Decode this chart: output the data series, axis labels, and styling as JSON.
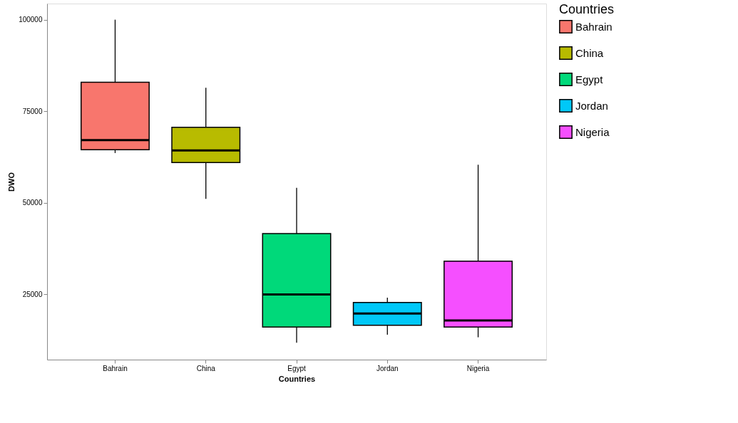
{
  "chart_data": {
    "type": "box",
    "xlabel": "Countries",
    "ylabel": "DWO",
    "legend_title": "Countries",
    "legend": "right",
    "grid": false,
    "categories": [
      "Bahrain",
      "China",
      "Egypt",
      "Jordan",
      "Nigeria"
    ],
    "series": [
      {
        "name": "Bahrain",
        "color": "#f8766d",
        "boxes": [
          {
            "low": 63600,
            "q1": 64500,
            "median": 67100,
            "q3": 82900,
            "high": 100000
          },
          null,
          null,
          null,
          null
        ]
      },
      {
        "name": "China",
        "color": "#b8bb00",
        "boxes": [
          null,
          {
            "low": 51100,
            "q1": 61000,
            "median": 64300,
            "q3": 70600,
            "high": 81400
          },
          null,
          null,
          null
        ]
      },
      {
        "name": "Egypt",
        "color": "#00d97a",
        "boxes": [
          null,
          null,
          {
            "low": 11800,
            "q1": 16100,
            "median": 25000,
            "q3": 41600,
            "high": 54100
          },
          null,
          null
        ]
      },
      {
        "name": "Jordan",
        "color": "#00c8f8",
        "boxes": [
          null,
          null,
          null,
          {
            "low": 14000,
            "q1": 16600,
            "median": 19800,
            "q3": 22800,
            "high": 24100
          },
          null
        ]
      },
      {
        "name": "Nigeria",
        "color": "#f54fff",
        "boxes": [
          null,
          null,
          null,
          null,
          {
            "low": 13300,
            "q1": 16100,
            "median": 17900,
            "q3": 34100,
            "high": 60400
          }
        ]
      }
    ],
    "ylim": [
      7200,
      104400
    ],
    "yticks": [
      25000,
      50000,
      75000,
      100000
    ]
  }
}
